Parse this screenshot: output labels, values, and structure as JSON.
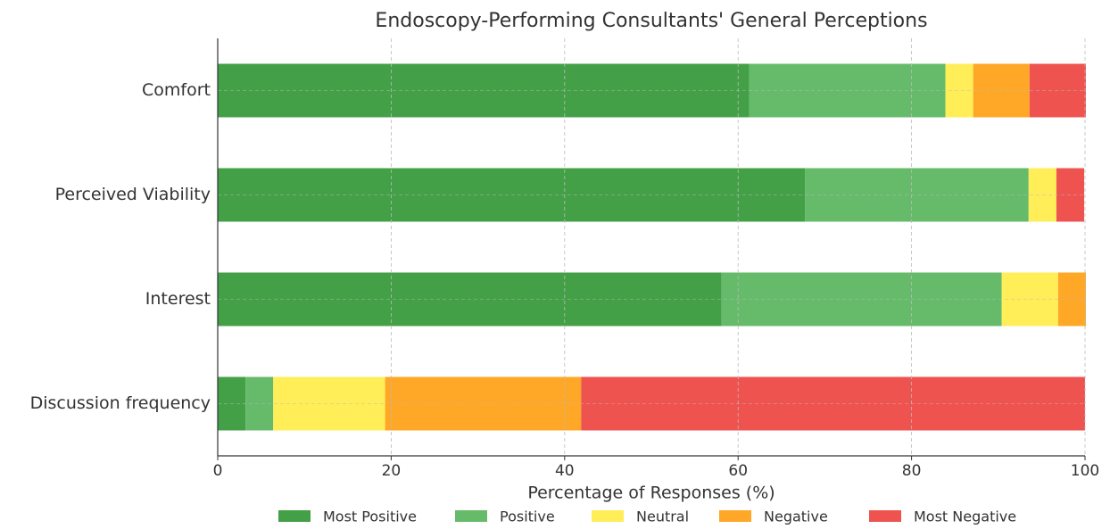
{
  "chart_data": {
    "type": "stacked_barh",
    "title": "Endoscopy-Performing Consultants' General Perceptions",
    "xlabel": "Percentage of Responses (%)",
    "categories": [
      "Comfort",
      "Perceived Viability",
      "Interest",
      "Discussion frequency"
    ],
    "series": [
      {
        "name": "Most Positive",
        "color": "#43a047",
        "values": [
          61.3,
          67.7,
          58.1,
          3.2
        ]
      },
      {
        "name": "Positive",
        "color": "#66bb6a",
        "values": [
          22.6,
          25.8,
          32.3,
          3.2
        ]
      },
      {
        "name": "Neutral",
        "color": "#ffee58",
        "values": [
          3.2,
          3.2,
          6.5,
          12.9
        ]
      },
      {
        "name": "Negative",
        "color": "#ffa726",
        "values": [
          6.5,
          0,
          3.2,
          22.6
        ]
      },
      {
        "name": "Most Negative",
        "color": "#ef5350",
        "values": [
          6.5,
          3.2,
          0,
          58.1
        ]
      }
    ],
    "xlim": [
      0,
      100
    ],
    "xticks": [
      0,
      20,
      40,
      60,
      80,
      100
    ],
    "grid": true,
    "legend": "bottom"
  }
}
